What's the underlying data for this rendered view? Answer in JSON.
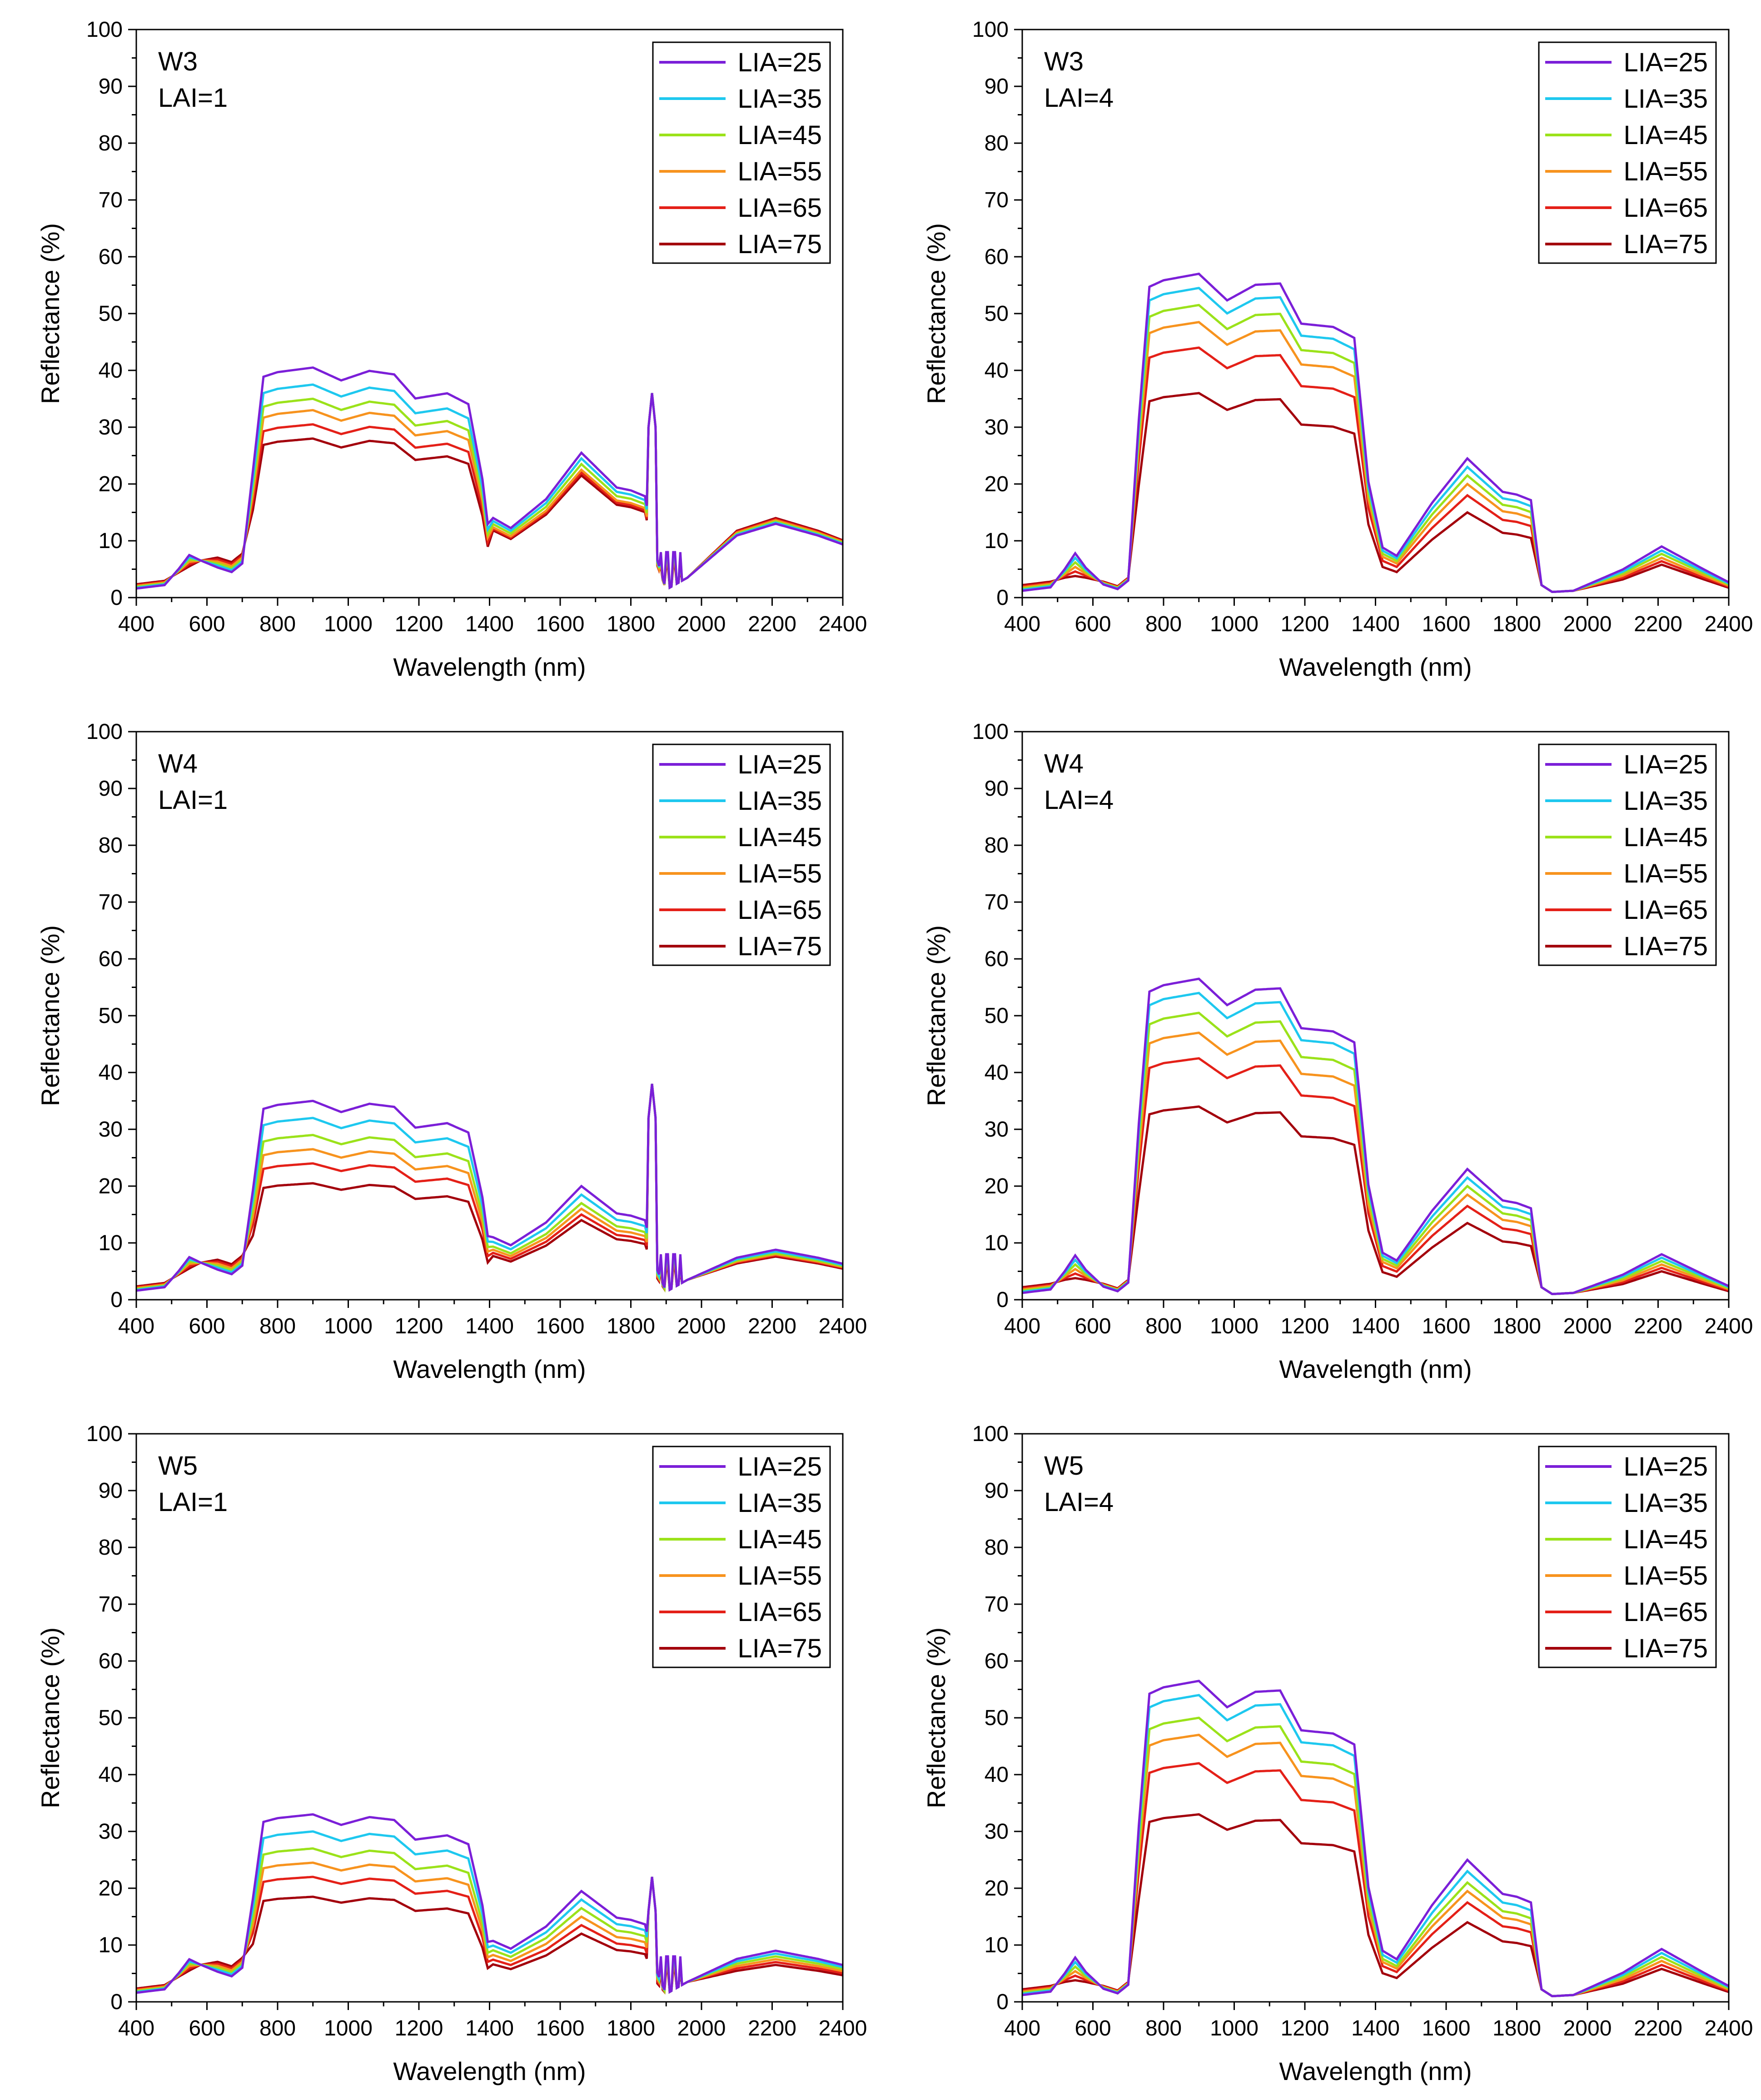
{
  "legend_entries": [
    {
      "label": "LIA=25",
      "color": "#7b1fd8"
    },
    {
      "label": "LIA=35",
      "color": "#1ec8ef"
    },
    {
      "label": "LIA=45",
      "color": "#9be21a"
    },
    {
      "label": "LIA=55",
      "color": "#f7931e"
    },
    {
      "label": "LIA=65",
      "color": "#e42018"
    },
    {
      "label": "LIA=75",
      "color": "#a3000c"
    }
  ],
  "chart_data": [
    {
      "type": "line",
      "title": "W3 LAI=1",
      "panel_label": "W3",
      "lai_label": "LAI=1",
      "xlabel": "Wavelength (nm)",
      "ylabel": "Reflectance (%)",
      "xlim": [
        400,
        2400
      ],
      "ylim": [
        0,
        100
      ],
      "xticks": [
        "400",
        "600",
        "800",
        "1000",
        "1200",
        "1400",
        "1600",
        "1800",
        "2000",
        "2200",
        "2400"
      ],
      "yticks": [
        "0",
        "10",
        "20",
        "30",
        "40",
        "50",
        "60",
        "70",
        "80",
        "90",
        "100"
      ],
      "legend": [
        "LIA=25",
        "LIA=35",
        "LIA=45",
        "LIA=55",
        "LIA=65",
        "LIA=75"
      ],
      "nir_top": [
        40.5,
        37.5,
        35,
        33,
        30.5,
        28
      ],
      "swir_top": [
        25.5,
        24.5,
        23.5,
        22.5,
        22,
        21.5
      ],
      "peak_2200": [
        13,
        13.2,
        13.4,
        13.6,
        13.8,
        14
      ],
      "spike_1860": 36
    },
    {
      "type": "line",
      "title": "W3 LAI=4",
      "panel_label": "W3",
      "lai_label": "LAI=4",
      "xlabel": "Wavelength (nm)",
      "ylabel": "Reflectance (%)",
      "xlim": [
        400,
        2400
      ],
      "ylim": [
        0,
        100
      ],
      "xticks": [
        "400",
        "600",
        "800",
        "1000",
        "1200",
        "1400",
        "1600",
        "1800",
        "2000",
        "2200",
        "2400"
      ],
      "yticks": [
        "0",
        "10",
        "20",
        "30",
        "40",
        "50",
        "60",
        "70",
        "80",
        "90",
        "100"
      ],
      "legend": [
        "LIA=25",
        "LIA=35",
        "LIA=45",
        "LIA=55",
        "LIA=65",
        "LIA=75"
      ],
      "nir_top": [
        57,
        54.5,
        51.5,
        48.5,
        44,
        36
      ],
      "swir_top": [
        24.5,
        23,
        21.5,
        20,
        18,
        15
      ],
      "peak_2200": [
        9,
        8.3,
        7.7,
        7,
        6.4,
        5.8
      ],
      "spike_1860": 0
    },
    {
      "type": "line",
      "title": "W4 LAI=1",
      "panel_label": "W4",
      "lai_label": "LAI=1",
      "xlabel": "Wavelength (nm)",
      "ylabel": "Reflectance (%)",
      "xlim": [
        400,
        2400
      ],
      "ylim": [
        0,
        100
      ],
      "xticks": [
        "400",
        "600",
        "800",
        "1000",
        "1200",
        "1400",
        "1600",
        "1800",
        "2000",
        "2200",
        "2400"
      ],
      "yticks": [
        "0",
        "10",
        "20",
        "30",
        "40",
        "50",
        "60",
        "70",
        "80",
        "90",
        "100"
      ],
      "legend": [
        "LIA=25",
        "LIA=35",
        "LIA=45",
        "LIA=55",
        "LIA=65",
        "LIA=75"
      ],
      "nir_top": [
        35,
        32,
        29,
        26.5,
        24,
        20.5
      ],
      "swir_top": [
        20,
        18.5,
        17,
        16,
        15,
        14
      ],
      "peak_2200": [
        8.8,
        8.5,
        8.2,
        8,
        7.8,
        7.6
      ],
      "spike_1860": 38
    },
    {
      "type": "line",
      "title": "W4 LAI=4",
      "panel_label": "W4",
      "lai_label": "LAI=4",
      "xlabel": "Wavelength (nm)",
      "ylabel": "Reflectance (%)",
      "xlim": [
        400,
        2400
      ],
      "ylim": [
        0,
        100
      ],
      "xticks": [
        "400",
        "600",
        "800",
        "1000",
        "1200",
        "1400",
        "1600",
        "1800",
        "2000",
        "2200",
        "2400"
      ],
      "yticks": [
        "0",
        "10",
        "20",
        "30",
        "40",
        "50",
        "60",
        "70",
        "80",
        "90",
        "100"
      ],
      "legend": [
        "LIA=25",
        "LIA=35",
        "LIA=45",
        "LIA=55",
        "LIA=65",
        "LIA=75"
      ],
      "nir_top": [
        56.5,
        54,
        50.5,
        47,
        42.5,
        34
      ],
      "swir_top": [
        23,
        21.5,
        20,
        18.5,
        16.5,
        13.5
      ],
      "peak_2200": [
        8,
        7.4,
        6.8,
        6.2,
        5.6,
        5
      ],
      "spike_1860": 0
    },
    {
      "type": "line",
      "title": "W5 LAI=1",
      "panel_label": "W5",
      "lai_label": "LAI=1",
      "xlabel": "Wavelength (nm)",
      "ylabel": "Reflectance (%)",
      "xlim": [
        400,
        2400
      ],
      "ylim": [
        0,
        100
      ],
      "xticks": [
        "400",
        "600",
        "800",
        "1000",
        "1200",
        "1400",
        "1600",
        "1800",
        "2000",
        "2200",
        "2400"
      ],
      "yticks": [
        "0",
        "10",
        "20",
        "30",
        "40",
        "50",
        "60",
        "70",
        "80",
        "90",
        "100"
      ],
      "legend": [
        "LIA=25",
        "LIA=35",
        "LIA=45",
        "LIA=55",
        "LIA=65",
        "LIA=75"
      ],
      "nir_top": [
        33,
        30,
        27,
        24.5,
        22,
        18.5
      ],
      "swir_top": [
        19.5,
        18,
        16.5,
        15,
        13.5,
        12
      ],
      "peak_2200": [
        9,
        8.5,
        8,
        7.5,
        7,
        6.5
      ],
      "spike_1860": 22
    },
    {
      "type": "line",
      "title": "W5 LAI=4",
      "panel_label": "W5",
      "lai_label": "LAI=4",
      "xlabel": "Wavelength (nm)",
      "ylabel": "Reflectance (%)",
      "xlim": [
        400,
        2400
      ],
      "ylim": [
        0,
        100
      ],
      "xticks": [
        "400",
        "600",
        "800",
        "1000",
        "1200",
        "1400",
        "1600",
        "1800",
        "2000",
        "2200",
        "2400"
      ],
      "yticks": [
        "0",
        "10",
        "20",
        "30",
        "40",
        "50",
        "60",
        "70",
        "80",
        "90",
        "100"
      ],
      "legend": [
        "LIA=25",
        "LIA=35",
        "LIA=45",
        "LIA=55",
        "LIA=65",
        "LIA=75"
      ],
      "nir_top": [
        56.5,
        54,
        50,
        47,
        42,
        33
      ],
      "swir_top": [
        25,
        23,
        21,
        19.5,
        17.5,
        14
      ],
      "peak_2200": [
        9.3,
        8.6,
        7.9,
        7.2,
        6.5,
        5.8
      ],
      "spike_1860": 0
    }
  ]
}
